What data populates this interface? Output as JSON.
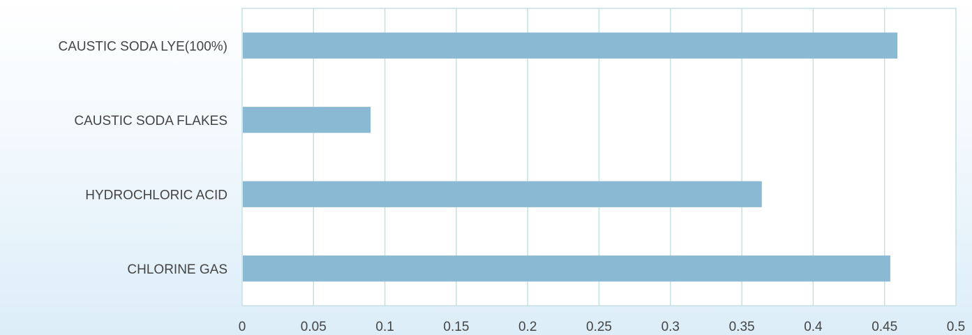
{
  "chart_data": {
    "type": "bar",
    "orientation": "horizontal",
    "categories": [
      "CAUSTIC SODA LYE(100%)",
      "CAUSTIC SODA FLAKES",
      "HYDROCHLORIC ACID",
      "CHLORINE GAS"
    ],
    "values": [
      0.459,
      0.09,
      0.364,
      0.454
    ],
    "xlim": [
      0,
      0.5
    ],
    "xticks": [
      "0",
      "0.05",
      "0.1",
      "0.15",
      "0.2",
      "0.25",
      "0.3",
      "0.35",
      "0.4",
      "0.45",
      "0.5"
    ],
    "title": "",
    "xlabel": "",
    "ylabel": "",
    "grid": true,
    "legend": "none",
    "colors": {
      "bar": "#8ab9d3",
      "grid": "#c5e0e3",
      "text": "#444444",
      "plot_background": "#ffffff"
    }
  }
}
